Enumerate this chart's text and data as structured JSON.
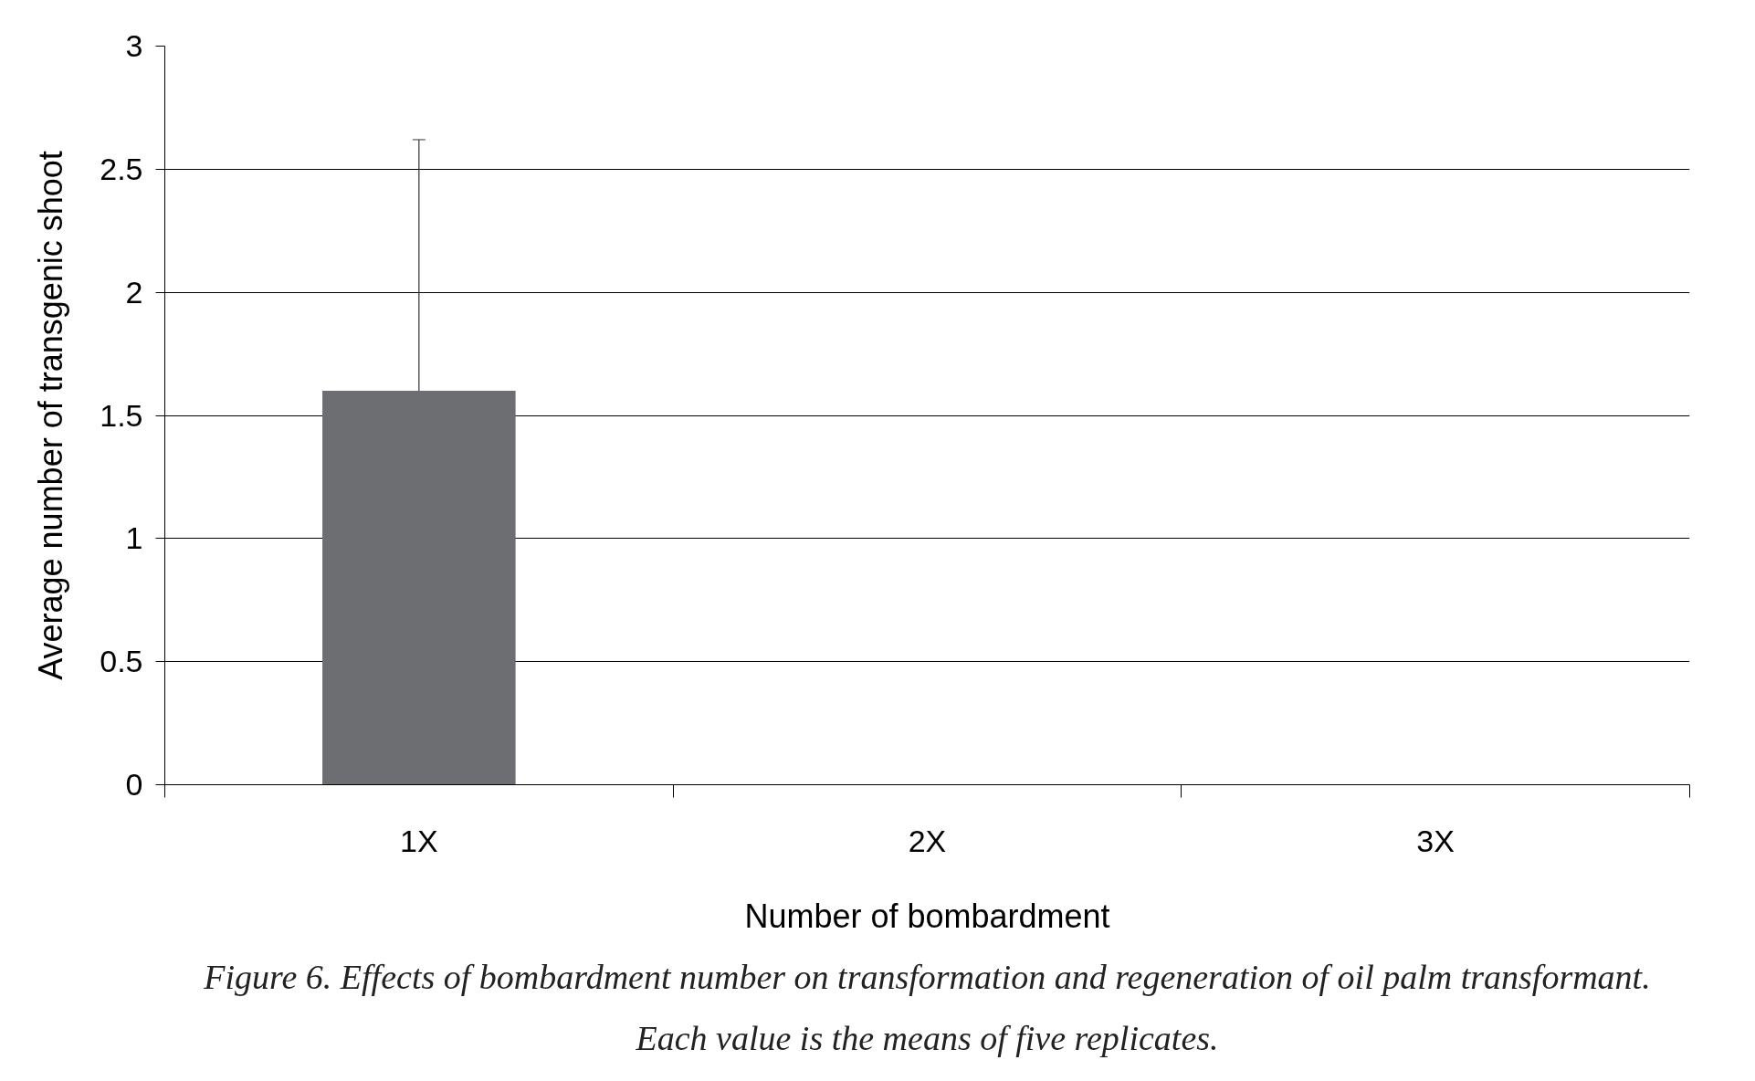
{
  "chart_data": {
    "type": "bar",
    "xlabel": "Number of bombardment",
    "ylabel": "Average number of transgenic shoot",
    "categories": [
      "1X",
      "2X",
      "3X"
    ],
    "values": [
      1.6,
      0,
      0
    ],
    "color": "#6d6e71",
    "errors": [
      [
        1.6,
        2.62
      ],
      null,
      null
    ],
    "ylim": [
      0,
      3
    ],
    "yticks": [
      0,
      0.5,
      1,
      1.5,
      2,
      2.5,
      3
    ],
    "grid": "y",
    "annotations": [
      "Figure 6. Effects of bombardment number on transformation and regeneration of oil palm transformant.",
      "Each value is the means of five replicates."
    ]
  }
}
